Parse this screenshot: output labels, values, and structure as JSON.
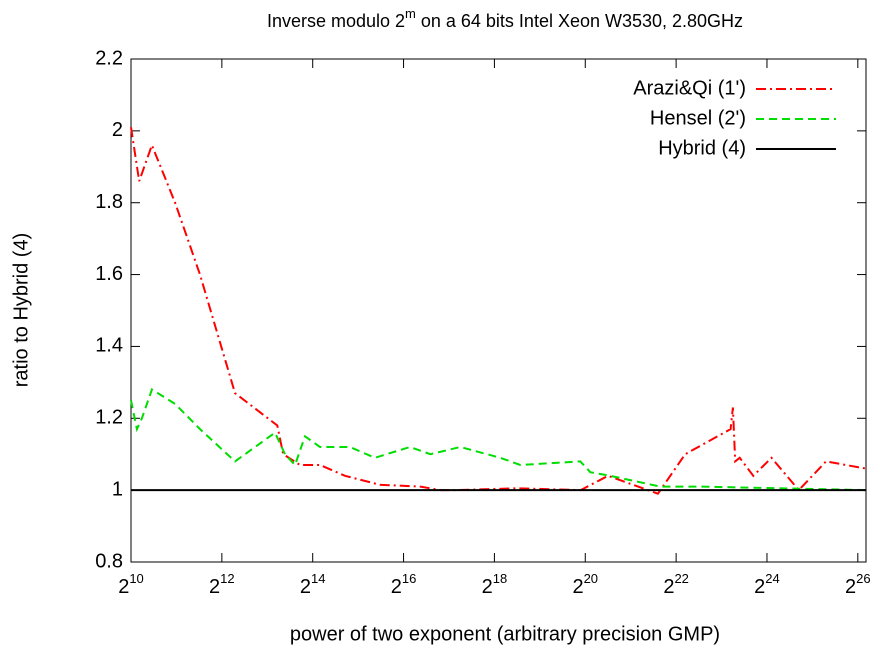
{
  "chart_data": {
    "type": "line",
    "title": {
      "before": "Inverse modulo 2",
      "superscript": "m",
      "after": " on a 64 bits Intel Xeon W3530, 2.80GHz"
    },
    "x_label": "power of two exponent (arbitrary precision GMP)",
    "y_label": "ratio to Hybrid (4)",
    "x_tick_base": "2",
    "xlim": [
      10,
      26.18
    ],
    "xticks": [
      10,
      12,
      14,
      16,
      18,
      20,
      22,
      24,
      26
    ],
    "ylim": [
      0.8,
      2.2
    ],
    "yticks": [
      0.8,
      1,
      1.2,
      1.4,
      1.6,
      1.8,
      2,
      2.2
    ],
    "legend": "top-right",
    "series": [
      {
        "name": "Arazi&Qi (1')",
        "color": "#ff0000",
        "dash": "dashdot",
        "x": [
          10,
          10.18,
          10.46,
          10.97,
          11.52,
          12.29,
          13.22,
          13.35,
          13.72,
          14.16,
          14.71,
          15.48,
          16.37,
          16.81,
          17.14,
          18.5,
          19.9,
          20.5,
          21.6,
          22.2,
          23.2,
          23.25,
          23.3,
          23.4,
          23.7,
          24.1,
          24.7,
          25.3,
          26.18
        ],
        "values": [
          2.01,
          1.86,
          1.96,
          1.8,
          1.6,
          1.27,
          1.18,
          1.1,
          1.07,
          1.07,
          1.04,
          1.015,
          1.01,
          1.0,
          1.0,
          1.005,
          1.0,
          1.04,
          0.99,
          1.1,
          1.17,
          1.23,
          1.08,
          1.09,
          1.04,
          1.09,
          1.0,
          1.08,
          1.06
        ]
      },
      {
        "name": "Hensel (2')",
        "color": "#00dd00",
        "dash": "dashed",
        "x": [
          10,
          10.13,
          10.24,
          10.46,
          10.97,
          11.52,
          12.29,
          13.17,
          13.39,
          13.61,
          13.83,
          14.16,
          14.82,
          15.37,
          16.14,
          16.59,
          17.25,
          18.13,
          18.57,
          19.89,
          20.11,
          20.55,
          21.65,
          22.53,
          26.18
        ],
        "values": [
          1.25,
          1.17,
          1.2,
          1.28,
          1.24,
          1.17,
          1.08,
          1.16,
          1.1,
          1.07,
          1.15,
          1.12,
          1.12,
          1.09,
          1.12,
          1.1,
          1.12,
          1.09,
          1.07,
          1.08,
          1.05,
          1.04,
          1.01,
          1.01,
          1.0
        ]
      },
      {
        "name": "Hybrid (4)",
        "color": "#000000",
        "dash": "solid",
        "x": [
          10,
          26.18
        ],
        "values": [
          1,
          1
        ]
      }
    ]
  }
}
